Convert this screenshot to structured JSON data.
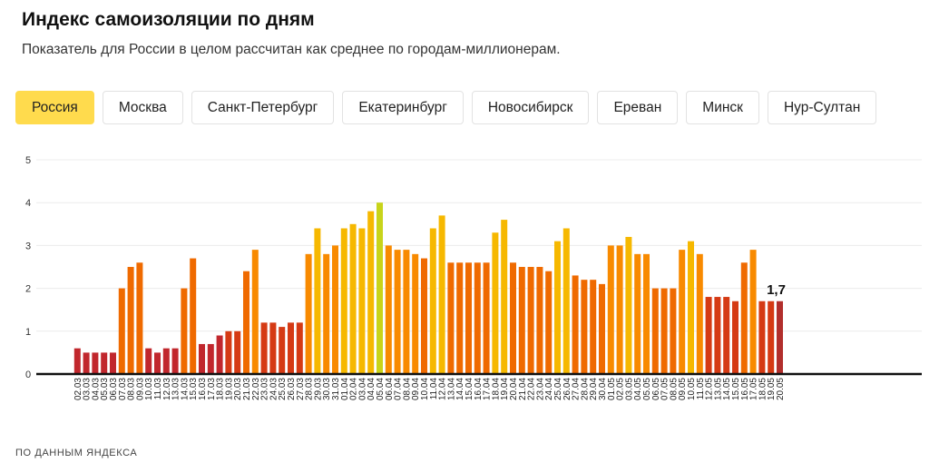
{
  "header": {
    "title": "Индекс самоизоляции по дням",
    "subtitle": "Показатель для России в целом рассчитан как среднее по городам-миллионерам."
  },
  "tabs": [
    {
      "label": "Россия",
      "active": true
    },
    {
      "label": "Москва",
      "active": false
    },
    {
      "label": "Санкт-Петербург",
      "active": false
    },
    {
      "label": "Екатеринбург",
      "active": false
    },
    {
      "label": "Новосибирск",
      "active": false
    },
    {
      "label": "Ереван",
      "active": false
    },
    {
      "label": "Минск",
      "active": false
    },
    {
      "label": "Нур-Султан",
      "active": false
    }
  ],
  "colors": {
    "tab_active": "#ffdb4d",
    "bar_palette": [
      "#c1272d",
      "#d53a14",
      "#ef6a00",
      "#f88a00",
      "#f6b800",
      "#c8d41a"
    ],
    "last_bar": "#b22f2c"
  },
  "footer": "ПО ДАННЫМ ЯНДЕКСА",
  "chart_data": {
    "type": "bar",
    "ylim": [
      0,
      5
    ],
    "yticks": [
      "0",
      "1",
      "2",
      "3",
      "4",
      "5"
    ],
    "grid": true,
    "last_value_label": "1,7",
    "categories": [
      "02.03",
      "03.03",
      "04.03",
      "05.03",
      "06.03",
      "07.03",
      "08.03",
      "09.03",
      "10.03",
      "11.03",
      "12.03",
      "13.03",
      "14.03",
      "15.03",
      "16.03",
      "17.03",
      "18.03",
      "19.03",
      "20.03",
      "21.03",
      "22.03",
      "23.03",
      "24.03",
      "25.03",
      "26.03",
      "27.03",
      "28.03",
      "29.03",
      "30.03",
      "31.03",
      "01.04",
      "02.04",
      "03.04",
      "04.04",
      "05.04",
      "06.04",
      "07.04",
      "08.04",
      "09.04",
      "10.04",
      "11.04",
      "12.04",
      "13.04",
      "14.04",
      "15.04",
      "16.04",
      "17.04",
      "18.04",
      "19.04",
      "20.04",
      "21.04",
      "22.04",
      "23.04",
      "24.04",
      "25.04",
      "26.04",
      "27.04",
      "28.04",
      "29.04",
      "30.04",
      "01.05",
      "02.05",
      "03.05",
      "04.05",
      "05.05",
      "06.05",
      "07.05",
      "08.05",
      "09.05",
      "10.05",
      "11.05",
      "12.05",
      "13.05",
      "14.05",
      "15.05",
      "16.05",
      "17.05",
      "18.05",
      "19.05",
      "20.05"
    ],
    "values": [
      0.6,
      0.5,
      0.5,
      0.5,
      0.5,
      2.0,
      2.5,
      2.6,
      0.6,
      0.5,
      0.6,
      0.6,
      2.0,
      2.7,
      0.7,
      0.7,
      0.9,
      1.0,
      1.0,
      2.4,
      2.9,
      1.2,
      1.2,
      1.1,
      1.2,
      1.2,
      2.8,
      3.4,
      2.8,
      3.0,
      3.4,
      3.5,
      3.4,
      3.8,
      4.0,
      3.0,
      2.9,
      2.9,
      2.8,
      2.7,
      3.4,
      3.7,
      2.6,
      2.6,
      2.6,
      2.6,
      2.6,
      3.3,
      3.6,
      2.6,
      2.5,
      2.5,
      2.5,
      2.4,
      3.1,
      3.4,
      2.3,
      2.2,
      2.2,
      2.1,
      3.0,
      3.0,
      3.2,
      2.8,
      2.8,
      2.0,
      2.0,
      2.0,
      2.9,
      3.1,
      2.8,
      1.8,
      1.8,
      1.8,
      1.7,
      2.6,
      2.9,
      1.7,
      1.7,
      1.7
    ]
  }
}
